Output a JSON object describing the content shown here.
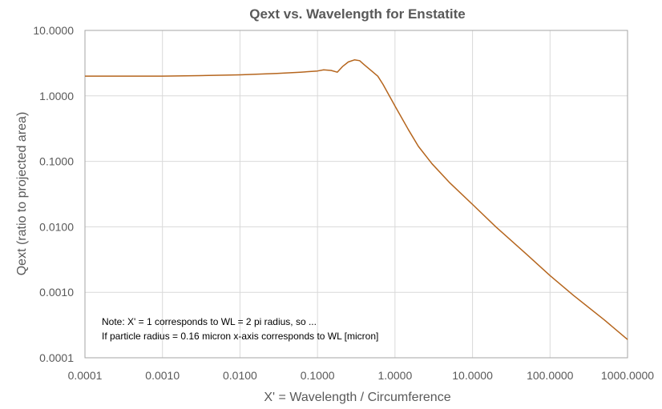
{
  "chart_data": {
    "type": "line",
    "title": "Qext vs. Wavelength for Enstatite",
    "xlabel": "X' = Wavelength / Circumference",
    "ylabel": "Qext (ratio to projected area)",
    "x_scale": "log",
    "y_scale": "log",
    "xlim": [
      0.0001,
      1000
    ],
    "ylim": [
      0.0001,
      10
    ],
    "x_ticks": [
      0.0001,
      0.001,
      0.01,
      0.1,
      1,
      10,
      100,
      1000
    ],
    "x_tick_labels": [
      "0.0001",
      "0.0010",
      "0.0100",
      "0.1000",
      "1.0000",
      "10.0000",
      "100.0000",
      "1000.0000"
    ],
    "y_ticks": [
      0.0001,
      0.001,
      0.01,
      0.1,
      1,
      10
    ],
    "y_tick_labels": [
      "0.0001",
      "0.0010",
      "0.0100",
      "0.1000",
      "1.0000",
      "10.0000"
    ],
    "grid": "vertical",
    "annotations": [
      "Note: X' = 1 corresponds to WL = 2 pi radius, so ...",
      "If particle radius = 0.16 micron x-axis corresponds to WL [micron]"
    ],
    "series": [
      {
        "color": "#B5651D",
        "x": [
          0.0001,
          0.0003,
          0.001,
          0.003,
          0.01,
          0.03,
          0.06,
          0.1,
          0.12,
          0.15,
          0.18,
          0.21,
          0.25,
          0.3,
          0.35,
          0.4,
          0.5,
          0.6,
          0.7,
          1,
          1.5,
          2,
          3,
          5,
          10,
          20,
          50,
          100,
          200,
          500,
          1000
        ],
        "y": [
          2.0,
          2.0,
          2.0,
          2.04,
          2.1,
          2.2,
          2.3,
          2.4,
          2.5,
          2.45,
          2.3,
          2.8,
          3.3,
          3.55,
          3.45,
          3.0,
          2.4,
          2.0,
          1.5,
          0.7,
          0.3,
          0.17,
          0.092,
          0.048,
          0.022,
          0.01,
          0.0038,
          0.0018,
          0.0009,
          0.00038,
          0.00019
        ]
      }
    ]
  }
}
